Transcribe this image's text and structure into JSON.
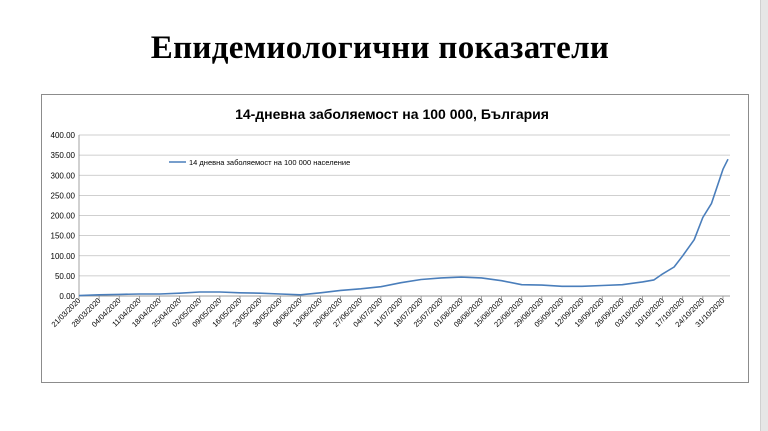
{
  "slide": {
    "title": "Епидемиологични показатели"
  },
  "chart_data": {
    "type": "line",
    "title": "14-дневна заболяемост на 100 000, България",
    "xlabel": "",
    "ylabel": "",
    "ylim": [
      0,
      400
    ],
    "y_ticks": [
      "0.00",
      "50.00",
      "100.00",
      "150.00",
      "200.00",
      "250.00",
      "300.00",
      "350.00",
      "400.00"
    ],
    "x_tick_labels": [
      "21/03/2020",
      "28/03/2020",
      "04/04/2020",
      "11/04/2020",
      "18/04/2020",
      "25/04/2020",
      "02/05/2020",
      "09/05/2020",
      "16/05/2020",
      "23/05/2020",
      "30/05/2020",
      "06/06/2020",
      "13/06/2020",
      "20/06/2020",
      "27/06/2020",
      "04/07/2020",
      "11/07/2020",
      "18/07/2020",
      "25/07/2020",
      "01/08/2020",
      "08/08/2020",
      "15/08/2020",
      "22/08/2020",
      "29/08/2020",
      "05/09/2020",
      "12/09/2020",
      "19/09/2020",
      "26/09/2020",
      "03/10/2020",
      "10/10/2020",
      "17/10/2020",
      "24/10/2020",
      "31/10/2020"
    ],
    "grid": true,
    "legend_position": "top-left",
    "series": [
      {
        "name": "14 дневна заболяемост на 100 000 население",
        "color": "#4a7ebb",
        "x": [
          "21/03/2020",
          "28/03/2020",
          "04/04/2020",
          "11/04/2020",
          "18/04/2020",
          "25/04/2020",
          "02/05/2020",
          "09/05/2020",
          "16/05/2020",
          "23/05/2020",
          "30/05/2020",
          "06/06/2020",
          "13/06/2020",
          "20/06/2020",
          "27/06/2020",
          "04/07/2020",
          "11/07/2020",
          "18/07/2020",
          "25/07/2020",
          "01/08/2020",
          "08/08/2020",
          "15/08/2020",
          "22/08/2020",
          "29/08/2020",
          "05/09/2020",
          "12/09/2020",
          "19/09/2020",
          "26/09/2020",
          "03/10/2020",
          "07/10/2020",
          "10/10/2020",
          "14/10/2020",
          "17/10/2020",
          "21/10/2020",
          "24/10/2020",
          "27/10/2020",
          "31/10/2020",
          "02/11/2020"
        ],
        "values": [
          1,
          3,
          4,
          5,
          5,
          7,
          10,
          10,
          8,
          7,
          5,
          3,
          8,
          14,
          18,
          23,
          33,
          41,
          45,
          47,
          45,
          38,
          28,
          27,
          24,
          24,
          26,
          28,
          35,
          40,
          55,
          72,
          100,
          140,
          195,
          230,
          315,
          340
        ]
      }
    ]
  }
}
